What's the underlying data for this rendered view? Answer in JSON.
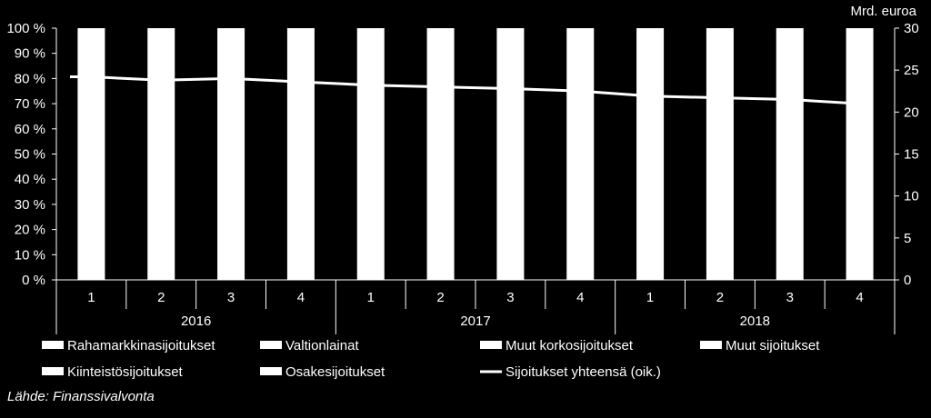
{
  "chart_data": {
    "type": "bar",
    "title": "",
    "right_axis_unit": "Mrd. euroa",
    "left_axis": {
      "min": 0,
      "max": 100,
      "step": 10,
      "suffix": " %"
    },
    "right_axis": {
      "min": 0,
      "max": 30,
      "step": 5
    },
    "groups": [
      {
        "label": "2016",
        "quarters": [
          "1",
          "2",
          "3",
          "4"
        ]
      },
      {
        "label": "2017",
        "quarters": [
          "1",
          "2",
          "3",
          "4"
        ]
      },
      {
        "label": "2018",
        "quarters": [
          "1",
          "2",
          "3",
          "4"
        ]
      }
    ],
    "stacked_series_names": [
      "Rahamarkkinasijoitukset",
      "Valtionlainat",
      "Muut korkosijoitukset",
      "Muut sijoitukset",
      "Kiinteistösijoitukset",
      "Osakesijoitukset"
    ],
    "stack_total_percent": [
      100,
      100,
      100,
      100,
      100,
      100,
      100,
      100,
      100,
      100,
      100,
      100
    ],
    "line_series": {
      "name": "Sijoitukset yhteensä (oik.)",
      "values": [
        24.2,
        23.8,
        24.0,
        23.6,
        23.2,
        23.0,
        22.8,
        22.5,
        21.9,
        21.7,
        21.5,
        21.0
      ]
    },
    "colors": {
      "background": "#000000",
      "bars": "#ffffff",
      "line": "#ffffff",
      "axes": "#ffffff"
    },
    "source": "Lähde: Finanssivalvonta"
  }
}
